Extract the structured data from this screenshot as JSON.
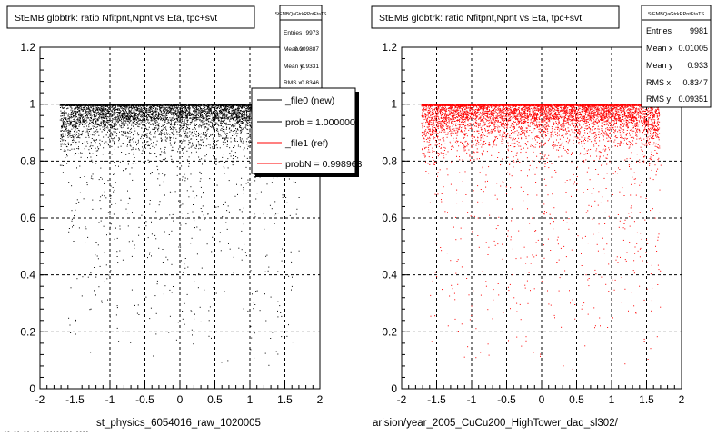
{
  "chart_data": [
    {
      "type": "scatter",
      "title": "StEMB globtrk: ratio Nfitpnt,Npnt vs Eta, tpc+svt",
      "xlabel": "st_physics_6054016_raw_1020005",
      "ylabel": "",
      "xlim": [
        -2,
        2
      ],
      "ylim": [
        0,
        1.2
      ],
      "x_ticks": [
        "-2",
        "-1.5",
        "-1",
        "-0.5",
        "0",
        "0.5",
        "1",
        "1.5",
        "2"
      ],
      "y_ticks": [
        "0",
        "0.2",
        "0.4",
        "0.6",
        "0.8",
        "1",
        "1.2"
      ],
      "grid": true,
      "marker_color": "#000000",
      "stats": {
        "name": "StEMBQaGtrkRPntEtaTS",
        "rows": [
          {
            "label": "Entries",
            "value": "9973"
          },
          {
            "label": "Mean x",
            "value": "0.009887"
          },
          {
            "label": "Mean y",
            "value": "0.9331"
          },
          {
            "label": "RMS x",
            "value": "0.8346"
          }
        ]
      },
      "legend": {
        "placement": "right",
        "entries": [
          {
            "label": "_file0 (new)",
            "color": "#000000"
          },
          {
            "label": "prob = 1.000000",
            "color": "#000000"
          },
          {
            "label": "_file1 (ref)",
            "color": "#ff0000"
          },
          {
            "label": "probN = 0.998963",
            "color": "#ff0000"
          }
        ]
      }
    },
    {
      "type": "scatter",
      "title": "StEMB globtrk: ratio Nfitpnt,Npnt vs Eta, tpc+svt",
      "xlabel": "arision/year_2005_CuCu200_HighTower_daq_sl302/",
      "ylabel": "",
      "xlim": [
        -2,
        2
      ],
      "ylim": [
        0,
        1.2
      ],
      "x_ticks": [
        "-2",
        "-1.5",
        "-1",
        "-0.5",
        "0",
        "0.5",
        "1",
        "1.5",
        "2"
      ],
      "y_ticks": [
        "0",
        "0.2",
        "0.4",
        "0.6",
        "0.8",
        "1",
        "1.2"
      ],
      "grid": true,
      "marker_color": "#ff0000",
      "stats": {
        "name": "StEMBQaGtrkRPntEtaTS",
        "rows": [
          {
            "label": "Entries",
            "value": "9981"
          },
          {
            "label": "Mean x",
            "value": "0.01005"
          },
          {
            "label": "Mean y",
            "value": "0.933"
          },
          {
            "label": "RMS x",
            "value": "0.8347"
          },
          {
            "label": "RMS y",
            "value": "0.09351"
          }
        ]
      }
    }
  ],
  "footer_text": "-- -- -- -- --------- ----"
}
